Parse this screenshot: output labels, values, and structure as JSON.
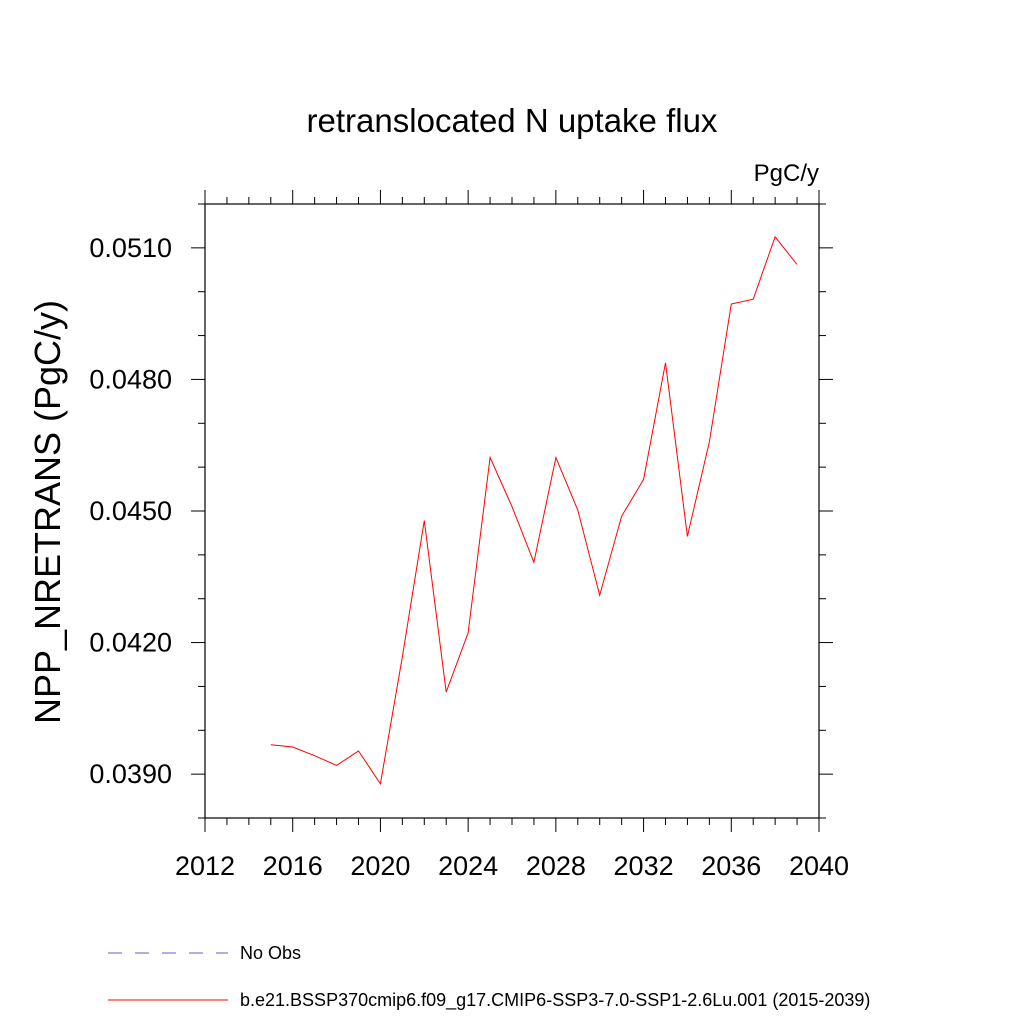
{
  "chart_data": {
    "type": "line",
    "title": "retranslocated N uptake flux",
    "units": "PgC/y",
    "ylabel": "NPP_NRETRANS  (PgC/y)",
    "xlabel": "",
    "xlim": [
      2012,
      2040
    ],
    "ylim": [
      0.038,
      0.052
    ],
    "xticks": [
      2012,
      2016,
      2020,
      2024,
      2028,
      2032,
      2036,
      2040
    ],
    "yticks": [
      0.039,
      0.042,
      0.045,
      0.048,
      0.051
    ],
    "ytick_labels": [
      "0.0390",
      "0.0420",
      "0.0450",
      "0.0480",
      "0.0510"
    ],
    "grid": false,
    "legend_position": "bottom",
    "series": [
      {
        "name": "b.e21.BSSP370cmip6.f09_g17.CMIP6-SSP3-7.0-SSP1-2.6Lu.001 (2015-2039)",
        "color": "#ff0000",
        "style": "solid",
        "x": [
          2015,
          2016,
          2017,
          2018,
          2019,
          2020,
          2021,
          2022,
          2023,
          2024,
          2025,
          2026,
          2027,
          2028,
          2029,
          2030,
          2031,
          2032,
          2033,
          2034,
          2035,
          2036,
          2037,
          2038,
          2039
        ],
        "y": [
          0.03967,
          0.03962,
          0.03942,
          0.0392,
          0.03953,
          0.03878,
          0.04168,
          0.04478,
          0.04087,
          0.04222,
          0.04622,
          0.0451,
          0.04383,
          0.04622,
          0.04502,
          0.04308,
          0.04488,
          0.04572,
          0.04838,
          0.04442,
          0.04658,
          0.04972,
          0.04983,
          0.05125,
          0.05062
        ]
      },
      {
        "name": "No Obs",
        "color": "#6a5acd",
        "style": "dashed",
        "x": [],
        "y": []
      }
    ]
  }
}
